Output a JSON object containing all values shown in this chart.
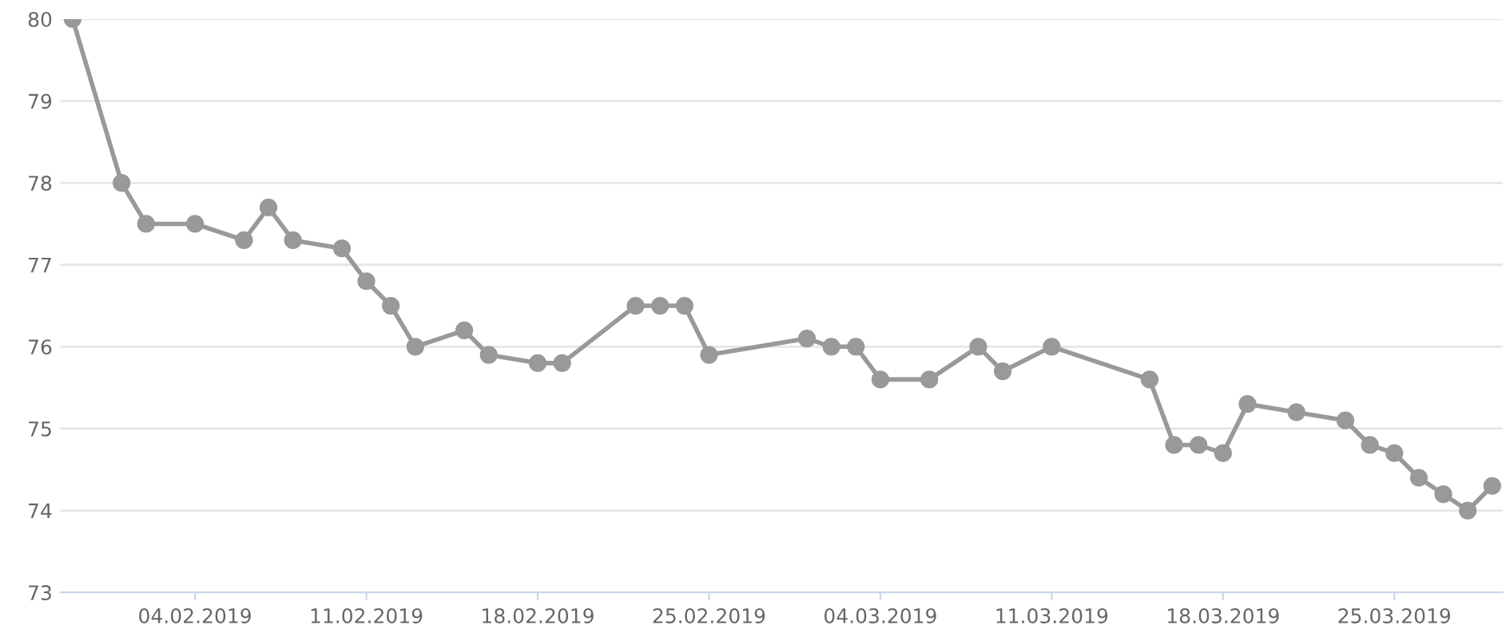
{
  "chart_data": {
    "type": "line",
    "x": [
      "2019-01-30",
      "2019-02-01",
      "2019-02-02",
      "2019-02-04",
      "2019-02-06",
      "2019-02-07",
      "2019-02-08",
      "2019-02-10",
      "2019-02-11",
      "2019-02-12",
      "2019-02-13",
      "2019-02-15",
      "2019-02-16",
      "2019-02-18",
      "2019-02-19",
      "2019-02-22",
      "2019-02-23",
      "2019-02-24",
      "2019-02-25",
      "2019-03-01",
      "2019-03-02",
      "2019-03-03",
      "2019-03-04",
      "2019-03-06",
      "2019-03-08",
      "2019-03-09",
      "2019-03-11",
      "2019-03-15",
      "2019-03-16",
      "2019-03-17",
      "2019-03-18",
      "2019-03-19",
      "2019-03-21",
      "2019-03-23",
      "2019-03-24",
      "2019-03-25",
      "2019-03-26",
      "2019-03-27",
      "2019-03-28",
      "2019-03-29"
    ],
    "series": [
      {
        "color": "#999999",
        "values": [
          80.0,
          78.0,
          77.5,
          77.5,
          77.3,
          77.7,
          77.3,
          77.2,
          76.8,
          76.5,
          76.0,
          76.2,
          75.9,
          75.8,
          75.8,
          76.5,
          76.5,
          76.5,
          75.9,
          76.1,
          76.0,
          76.0,
          75.6,
          75.6,
          76.0,
          75.7,
          76.0,
          75.6,
          74.8,
          74.8,
          74.7,
          75.3,
          75.2,
          75.1,
          74.8,
          74.7,
          74.4,
          74.2,
          74.0,
          74.3
        ]
      }
    ],
    "xlim": [
      "2019-01-29T12:00",
      "2019-03-29T10:00"
    ],
    "xticks": [
      {
        "value": "2019-02-04",
        "label": "04.02.2019"
      },
      {
        "value": "2019-02-11",
        "label": "11.02.2019"
      },
      {
        "value": "2019-02-18",
        "label": "18.02.2019"
      },
      {
        "value": "2019-02-25",
        "label": "25.02.2019"
      },
      {
        "value": "2019-03-04",
        "label": "04.03.2019"
      },
      {
        "value": "2019-03-11",
        "label": "11.03.2019"
      },
      {
        "value": "2019-03-18",
        "label": "18.03.2019"
      },
      {
        "value": "2019-03-25",
        "label": "25.03.2019"
      }
    ],
    "ylim": [
      73,
      80
    ],
    "yticks": [
      73,
      74,
      75,
      76,
      77,
      78,
      79,
      80
    ],
    "grid": "y",
    "marker": "circle",
    "line_style": "solid"
  }
}
